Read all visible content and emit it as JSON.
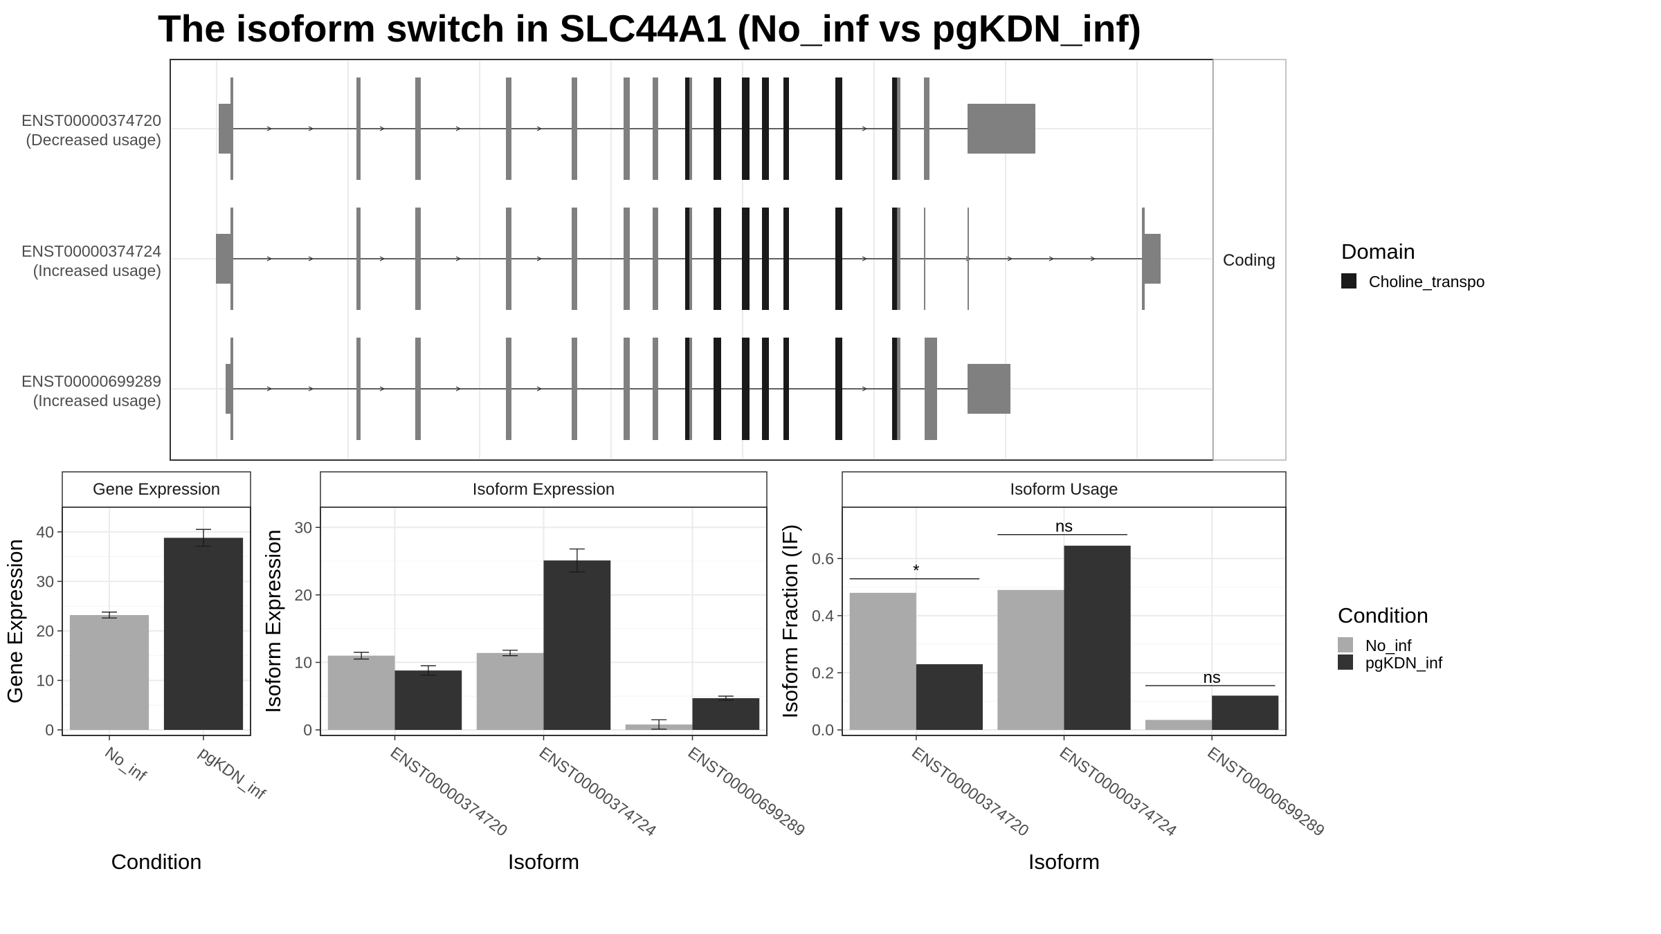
{
  "title": "The isoform switch in SLC44A1 (No_inf vs pgKDN_inf)",
  "colors": {
    "no_inf": "#aaaaaa",
    "pgkdn_inf": "#333333",
    "exon": "#808080",
    "domain": "#1a1a1a",
    "grid": "#ebebeb",
    "panel_border": "#333333",
    "strip_fill": "#ffffff"
  },
  "structure": {
    "facet_label": "Coding",
    "domain_legend_title": "Domain",
    "domain_legend_entry": "Choline_transpo",
    "transcripts": [
      {
        "id": "ENST00000374720",
        "usage": "(Decreased usage)"
      },
      {
        "id": "ENST00000374724",
        "usage": "(Increased usage)"
      },
      {
        "id": "ENST00000699289",
        "usage": "(Increased usage)"
      }
    ]
  },
  "condition_legend": {
    "title": "Condition",
    "entries": [
      "No_inf",
      "pgKDN_inf"
    ]
  },
  "chart_data": [
    {
      "panel": "Gene Expression",
      "type": "bar",
      "xlabel": "Condition",
      "ylabel": "Gene Expression",
      "categories": [
        "No_inf",
        "pgKDN_inf"
      ],
      "values": [
        23.2,
        38.8
      ],
      "errors": [
        0.6,
        1.7
      ],
      "ylim": [
        0,
        45
      ],
      "yticks": [
        0,
        10,
        20,
        30,
        40
      ],
      "grid": true
    },
    {
      "panel": "Isoform Expression",
      "type": "bar",
      "xlabel": "Isoform",
      "ylabel": "Isoform Expression",
      "categories": [
        "ENST00000374720",
        "ENST00000374724",
        "ENST00000699289"
      ],
      "series": [
        {
          "name": "No_inf",
          "values": [
            11.0,
            11.4,
            0.8
          ],
          "errors": [
            0.5,
            0.4,
            0.7
          ]
        },
        {
          "name": "pgKDN_inf",
          "values": [
            8.8,
            25.1,
            4.7
          ],
          "errors": [
            0.7,
            1.7,
            0.3
          ]
        }
      ],
      "ylim": [
        0,
        33
      ],
      "yticks": [
        0,
        10,
        20,
        30
      ],
      "grid": true
    },
    {
      "panel": "Isoform Usage",
      "type": "bar",
      "xlabel": "Isoform",
      "ylabel": "Isoform Fraction (IF)",
      "categories": [
        "ENST00000374720",
        "ENST00000374724",
        "ENST00000699289"
      ],
      "series": [
        {
          "name": "No_inf",
          "values": [
            0.48,
            0.49,
            0.035
          ]
        },
        {
          "name": "pgKDN_inf",
          "values": [
            0.23,
            0.645,
            0.12
          ]
        }
      ],
      "significance": [
        "*",
        "ns",
        "ns"
      ],
      "ylim": [
        0,
        0.78
      ],
      "yticks": [
        "0.0",
        "0.2",
        "0.4",
        "0.6"
      ],
      "grid": true
    }
  ]
}
